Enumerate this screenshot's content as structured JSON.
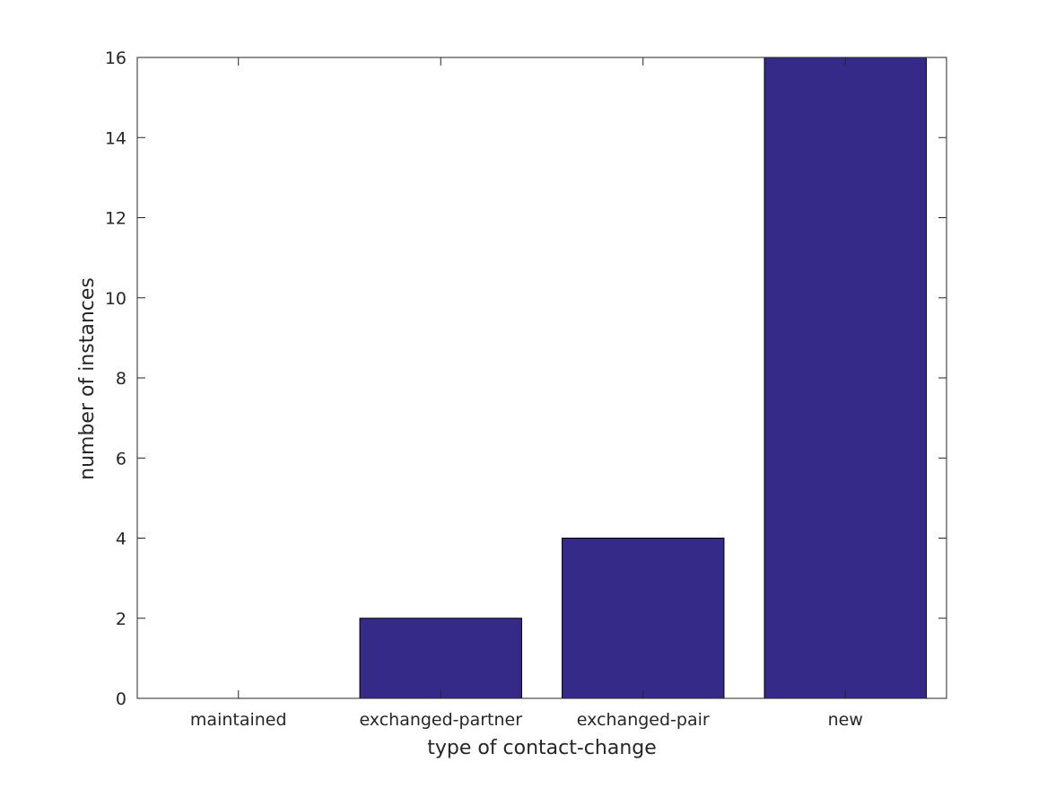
{
  "chart_data": {
    "type": "bar",
    "title": "",
    "xlabel": "type of contact-change",
    "ylabel": "number of instances",
    "categories": [
      "maintained",
      "exchanged-partner",
      "exchanged-pair",
      "new"
    ],
    "values": [
      0,
      2,
      4,
      16
    ],
    "ylim": [
      0,
      16
    ],
    "yticks": [
      0,
      2,
      4,
      6,
      8,
      10,
      12,
      14,
      16
    ],
    "grid": false,
    "legend": "none",
    "bar_color": "#352a87",
    "axis_color": "#262626"
  }
}
